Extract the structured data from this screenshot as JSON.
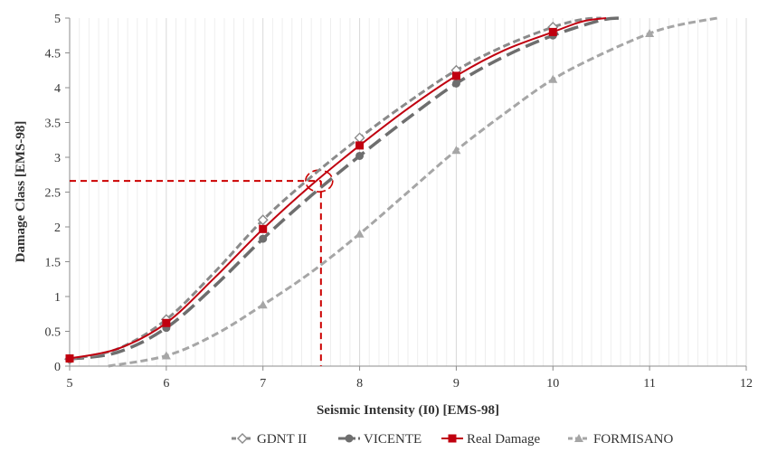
{
  "chart_data": {
    "type": "line",
    "title": "",
    "xlabel": "Seismic Intensity (I0) [EMS-98]",
    "ylabel": "Damage Class [EMS-98]",
    "xlim": [
      5,
      12
    ],
    "ylim": [
      0,
      5
    ],
    "x_ticks": [
      5,
      6,
      7,
      8,
      9,
      10,
      11,
      12
    ],
    "y_ticks": [
      0,
      0.5,
      1,
      1.5,
      2,
      2.5,
      3,
      3.5,
      4,
      4.5,
      5
    ],
    "x_tick_labels": [
      "5",
      "6",
      "7",
      "8",
      "9",
      "10",
      "11",
      "12"
    ],
    "y_tick_labels": [
      "0",
      "0.5",
      "1",
      "1.5",
      "2",
      "2.5",
      "3",
      "3.5",
      "4",
      "4.5",
      "5"
    ],
    "grid": "vertical minor gridlines",
    "legend_position": "bottom",
    "series": [
      {
        "name": "GDNT II",
        "color": "#8a8a8a",
        "marker": "diamond-open",
        "line": "dashed",
        "curve": [
          [
            5,
            0.1
          ],
          [
            5.5,
            0.25
          ],
          [
            6,
            0.67
          ],
          [
            6.5,
            1.35
          ],
          [
            7,
            2.1
          ],
          [
            7.5,
            2.72
          ],
          [
            8,
            3.28
          ],
          [
            8.5,
            3.79
          ],
          [
            9,
            4.25
          ],
          [
            9.5,
            4.6
          ],
          [
            10,
            4.87
          ],
          [
            10.3,
            4.98
          ],
          [
            10.5,
            5.0
          ]
        ],
        "markers": [
          [
            5,
            0.1
          ],
          [
            6,
            0.67
          ],
          [
            7,
            2.1
          ],
          [
            8,
            3.28
          ],
          [
            9,
            4.25
          ],
          [
            10,
            4.87
          ]
        ]
      },
      {
        "name": "VICENTE",
        "color": "#6e6e6e",
        "marker": "circle",
        "line": "long-dashed",
        "curve": [
          [
            5,
            0.1
          ],
          [
            5.5,
            0.2
          ],
          [
            6,
            0.55
          ],
          [
            6.5,
            1.15
          ],
          [
            7,
            1.83
          ],
          [
            7.5,
            2.45
          ],
          [
            8,
            3.02
          ],
          [
            8.5,
            3.56
          ],
          [
            9,
            4.06
          ],
          [
            9.5,
            4.45
          ],
          [
            10,
            4.75
          ],
          [
            10.5,
            4.97
          ],
          [
            10.7,
            5.0
          ]
        ],
        "markers": [
          [
            5,
            0.1
          ],
          [
            6,
            0.55
          ],
          [
            7,
            1.83
          ],
          [
            8,
            3.02
          ],
          [
            9,
            4.06
          ],
          [
            10,
            4.75
          ]
        ]
      },
      {
        "name": "Real Damage",
        "color": "#c0000f",
        "marker": "square",
        "line": "solid",
        "curve": [
          [
            5,
            0.11
          ],
          [
            5.5,
            0.25
          ],
          [
            6,
            0.62
          ],
          [
            6.5,
            1.27
          ],
          [
            7,
            1.97
          ],
          [
            7.5,
            2.6
          ],
          [
            8,
            3.17
          ],
          [
            8.5,
            3.7
          ],
          [
            9,
            4.17
          ],
          [
            9.5,
            4.54
          ],
          [
            10,
            4.8
          ],
          [
            10.3,
            4.95
          ],
          [
            10.55,
            5.0
          ]
        ],
        "markers": [
          [
            5,
            0.11
          ],
          [
            6,
            0.62
          ],
          [
            7,
            1.97
          ],
          [
            8,
            3.17
          ],
          [
            9,
            4.17
          ],
          [
            10,
            4.8
          ]
        ]
      },
      {
        "name": "FORMISANO",
        "color": "#a6a6a6",
        "marker": "triangle",
        "line": "dashed",
        "curve": [
          [
            5.4,
            0.0
          ],
          [
            6,
            0.15
          ],
          [
            6.5,
            0.45
          ],
          [
            7,
            0.88
          ],
          [
            7.5,
            1.35
          ],
          [
            8,
            1.9
          ],
          [
            8.5,
            2.5
          ],
          [
            9,
            3.1
          ],
          [
            9.5,
            3.63
          ],
          [
            10,
            4.12
          ],
          [
            10.5,
            4.48
          ],
          [
            11,
            4.78
          ],
          [
            11.3,
            4.9
          ],
          [
            11.7,
            5.0
          ]
        ],
        "markers": [
          [
            6,
            0.15
          ],
          [
            7,
            0.88
          ],
          [
            8,
            1.9
          ],
          [
            9,
            3.1
          ],
          [
            10,
            4.12
          ],
          [
            11,
            4.78
          ]
        ]
      }
    ],
    "annotations": {
      "reference_point": {
        "x": 7.6,
        "y": 2.66
      },
      "color": "#cc0000"
    }
  }
}
